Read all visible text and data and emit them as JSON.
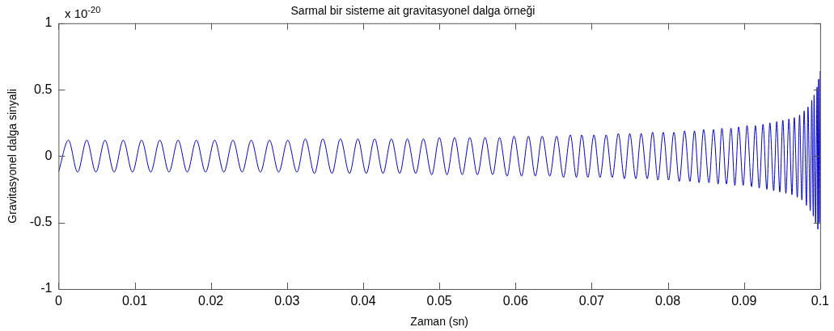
{
  "chart_data": {
    "type": "line",
    "title": "Sarmal bir sisteme ait gravitasyonel dalga örneği",
    "xlabel": "Zaman (sn)",
    "ylabel": "Gravitasyonel dalga sinyali",
    "annotations": [
      "x 10$^{-20}$"
    ],
    "xlim": [
      0,
      0.1
    ],
    "xticks": [
      0,
      0.01,
      0.02,
      0.03,
      0.04,
      0.05,
      0.06,
      0.07,
      0.08,
      0.09,
      0.1
    ],
    "ylim": [
      -1,
      1
    ],
    "yticks": [
      -1,
      -0.5,
      0,
      0.5,
      1
    ],
    "grid": false,
    "legend": false,
    "marker": "none",
    "line_style": "solid",
    "series": [
      {
        "color": "#0000cc",
        "x": [
          0,
          0.0013,
          0.0025,
          0.0037,
          0.0049,
          0.0061,
          0.0073,
          0.0085,
          0.0097,
          0.0109,
          0.0121,
          0.0133,
          0.0145,
          0.0157,
          0.0169,
          0.0181,
          0.0193,
          0.0205,
          0.0217,
          0.0229,
          0.0241,
          0.0253,
          0.0265,
          0.0277,
          0.0289,
          0.0301,
          0.0313,
          0.0324,
          0.0336,
          0.0347,
          0.0359,
          0.037,
          0.0382,
          0.0393,
          0.0404,
          0.0415,
          0.0426,
          0.0437,
          0.0448,
          0.0458,
          0.0469,
          0.0479,
          0.049,
          0.05,
          0.051,
          0.052,
          0.053,
          0.054,
          0.055,
          0.056,
          0.057,
          0.0579,
          0.0589,
          0.0598,
          0.0608,
          0.0617,
          0.0626,
          0.0635,
          0.0645,
          0.0654,
          0.0663,
          0.0672,
          0.068,
          0.0687,
          0.0695,
          0.0703,
          0.0711,
          0.0719,
          0.0727,
          0.0735,
          0.0743,
          0.075,
          0.0758,
          0.0765,
          0.0773,
          0.078,
          0.0787,
          0.0794,
          0.0801,
          0.0808,
          0.0815,
          0.0822,
          0.0829,
          0.0835,
          0.0841,
          0.0847,
          0.0854,
          0.086,
          0.0866,
          0.0871,
          0.0877,
          0.0883,
          0.0888,
          0.0893,
          0.0899,
          0.0904,
          0.091,
          0.0915,
          0.092,
          0.0925,
          0.093,
          0.0934,
          0.0939,
          0.0943,
          0.0947,
          0.0951,
          0.0955,
          0.0959,
          0.0963,
          0.0966,
          0.097,
          0.0973,
          0.0976,
          0.0979,
          0.0982,
          0.0984,
          0.0987,
          0.0989,
          0.0991,
          0.0992,
          0.0994,
          0.0996,
          0.0997,
          0.0998,
          0.0999,
          0.1
        ],
        "values": [
          -0.12,
          0.12,
          -0.12,
          0.12,
          -0.12,
          0.12,
          -0.12,
          0.12,
          -0.12,
          0.12,
          -0.12,
          0.12,
          -0.12,
          0.12,
          -0.12,
          0.12,
          -0.12,
          0.12,
          -0.12,
          0.12,
          -0.12,
          0.12,
          -0.12,
          0.12,
          -0.12,
          0.12,
          -0.12,
          0.13,
          -0.13,
          0.13,
          -0.13,
          0.13,
          -0.13,
          0.13,
          -0.13,
          0.13,
          -0.13,
          0.13,
          -0.13,
          0.13,
          -0.13,
          0.13,
          -0.14,
          0.14,
          -0.14,
          0.14,
          -0.14,
          0.14,
          -0.14,
          0.14,
          -0.14,
          0.14,
          -0.15,
          0.15,
          -0.15,
          0.15,
          -0.15,
          0.15,
          -0.15,
          0.15,
          -0.16,
          0.16,
          -0.16,
          0.16,
          -0.16,
          0.16,
          -0.16,
          0.16,
          -0.16,
          0.17,
          -0.17,
          0.17,
          -0.17,
          0.17,
          -0.17,
          0.18,
          -0.18,
          0.18,
          -0.18,
          0.18,
          -0.19,
          0.19,
          -0.19,
          0.19,
          -0.2,
          0.2,
          -0.2,
          0.2,
          -0.21,
          0.21,
          -0.21,
          0.21,
          -0.22,
          0.22,
          -0.22,
          0.23,
          -0.23,
          0.23,
          -0.24,
          0.24,
          -0.25,
          0.25,
          -0.26,
          0.26,
          -0.27,
          0.27,
          -0.28,
          0.28,
          -0.29,
          0.29,
          -0.31,
          0.31,
          -0.33,
          0.34,
          -0.37,
          0.37,
          -0.41,
          0.42,
          -0.45,
          0.46,
          -0.5,
          0.52,
          -0.55,
          0.58,
          -0.5,
          0.64
        ]
      }
    ]
  }
}
